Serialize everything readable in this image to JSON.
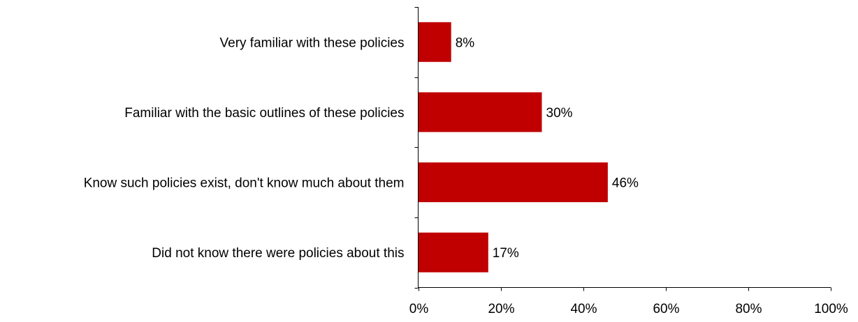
{
  "chart_data": {
    "type": "bar",
    "orientation": "horizontal",
    "categories": [
      "Very familiar with these policies",
      "Familiar with the basic outlines of these policies",
      "Know such policies exist, don't know much about them",
      "Did not know there were policies about this"
    ],
    "values": [
      8,
      30,
      46,
      17
    ],
    "data_labels": [
      "8%",
      "30%",
      "46%",
      "17%"
    ],
    "xlim": [
      0,
      100
    ],
    "x_ticks": [
      0,
      20,
      40,
      60,
      80,
      100
    ],
    "x_tick_labels": [
      "0%",
      "20%",
      "40%",
      "60%",
      "80%",
      "100%"
    ],
    "bar_color": "#C00000",
    "grid": false,
    "legend": "none",
    "title": "",
    "xlabel": "",
    "ylabel": ""
  }
}
